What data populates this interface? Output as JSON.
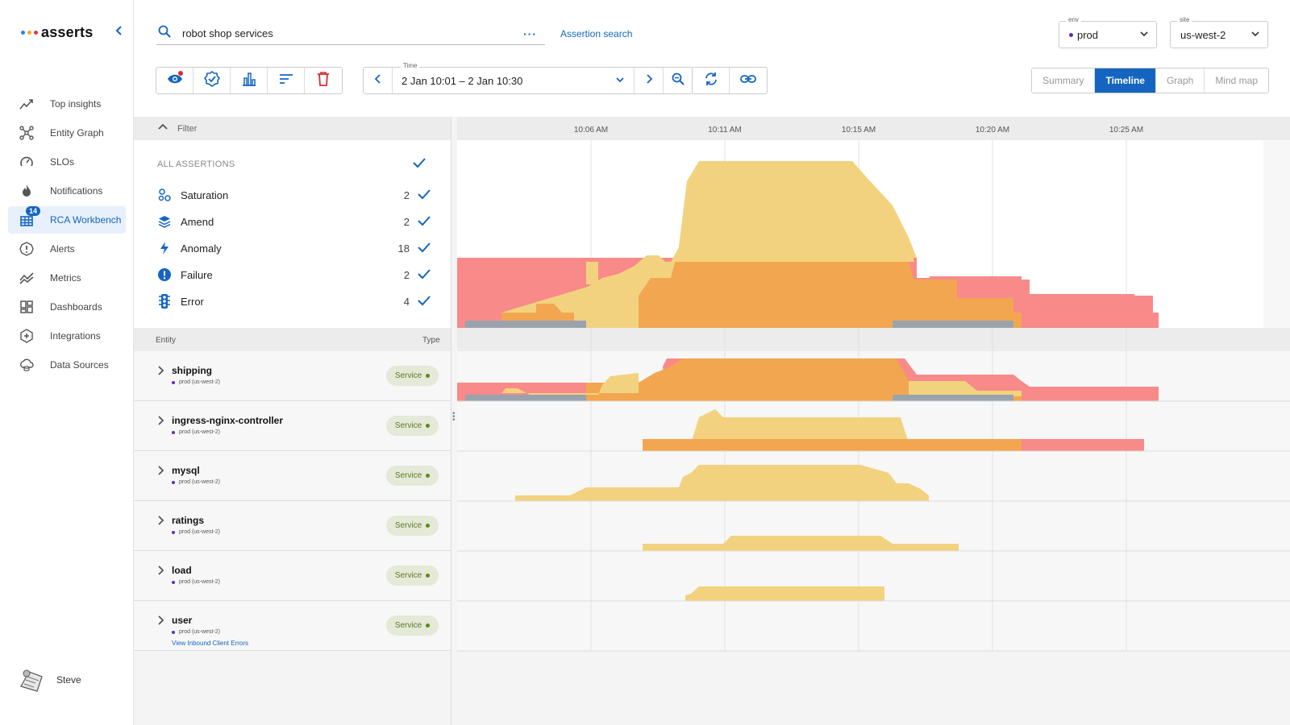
{
  "app": {
    "logo_text": "asserts",
    "logo_colors": [
      "#1e88e5",
      "#f9a825",
      "#e53935"
    ]
  },
  "sidebar": {
    "items": [
      {
        "label": "Top insights",
        "icon": "trend-icon"
      },
      {
        "label": "Entity Graph",
        "icon": "graph-icon"
      },
      {
        "label": "SLOs",
        "icon": "gauge-icon"
      },
      {
        "label": "Notifications",
        "icon": "flame-icon"
      },
      {
        "label": "RCA Workbench",
        "icon": "grid-icon",
        "badge": "14",
        "active": true
      },
      {
        "label": "Alerts",
        "icon": "alert-icon"
      },
      {
        "label": "Metrics",
        "icon": "metrics-icon"
      },
      {
        "label": "Dashboards",
        "icon": "dashboard-icon"
      },
      {
        "label": "Integrations",
        "icon": "integration-icon"
      },
      {
        "label": "Data Sources",
        "icon": "datasource-icon"
      }
    ],
    "user": {
      "name": "Steve"
    }
  },
  "topbar": {
    "search_value": "robot shop services",
    "assertion_search_label": "Assertion search",
    "env": {
      "label": "env",
      "value": "prod"
    },
    "site": {
      "label": "site",
      "value": "us-west-2"
    },
    "time": {
      "label": "Time",
      "value": "2 Jan 10:01 – 2 Jan 10:30"
    },
    "views": [
      "Summary",
      "Timeline",
      "Graph",
      "Mind map"
    ],
    "active_view": "Timeline"
  },
  "filter": {
    "title": "Filter",
    "all_label": "ALL ASSERTIONS",
    "items": [
      {
        "label": "Saturation",
        "count": "2",
        "icon": "saturation-icon"
      },
      {
        "label": "Amend",
        "count": "2",
        "icon": "layers-icon"
      },
      {
        "label": "Anomaly",
        "count": "18",
        "icon": "bolt-icon"
      },
      {
        "label": "Failure",
        "count": "2",
        "icon": "exclamation-icon"
      },
      {
        "label": "Error",
        "count": "4",
        "icon": "traffic-light-icon"
      }
    ]
  },
  "entities": {
    "col_entity": "Entity",
    "col_type": "Type",
    "rows": [
      {
        "name": "shipping",
        "scope": "prod (us-west-2)",
        "type": "Service"
      },
      {
        "name": "ingress-nginx-controller",
        "scope": "prod (us-west-2)",
        "type": "Service"
      },
      {
        "name": "mysql",
        "scope": "prod (us-west-2)",
        "type": "Service"
      },
      {
        "name": "ratings",
        "scope": "prod (us-west-2)",
        "type": "Service"
      },
      {
        "name": "load",
        "scope": "prod (us-west-2)",
        "type": "Service"
      },
      {
        "name": "user",
        "scope": "prod (us-west-2)",
        "type": "Service",
        "link": "View Inbound Client Errors"
      }
    ]
  },
  "timeline": {
    "ticks": [
      "10:06 AM",
      "10:11 AM",
      "10:15 AM",
      "10:20 AM",
      "10:25 AM"
    ],
    "colors": {
      "anomaly": "#f2d27e",
      "saturation": "#f2a650",
      "error": "#f88a8a",
      "amend": "#9aa3ad"
    }
  }
}
